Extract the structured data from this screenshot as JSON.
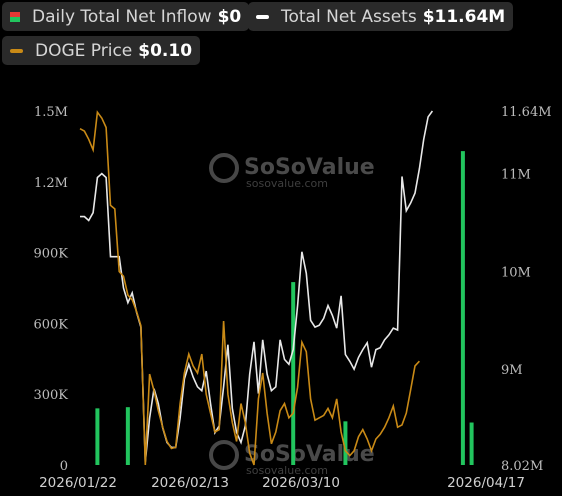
{
  "legend": {
    "inflow": {
      "label": "Daily Total Net Inflow",
      "value": "$0"
    },
    "assets": {
      "label": "Total Net Assets",
      "value": "$11.64M"
    },
    "price": {
      "label": "DOGE Price",
      "value": "$0.10"
    }
  },
  "watermark": {
    "brand": "SoSoValue",
    "site": "sosovalue.com"
  },
  "colors": {
    "inflow_pos": "#22c55e",
    "inflow_neg": "#e53935",
    "assets": "#e8e8e8",
    "price": "#c98a16"
  },
  "chart_data": {
    "type": "bar+line",
    "x_start": "2026-01-16",
    "x_end": "2026-04-20",
    "xticks": [
      "2026/01/22",
      "2026/02/13",
      "2026/03/10",
      "2026/04/17"
    ],
    "left_ticks": [
      "1.5M",
      "1.2M",
      "900K",
      "600K",
      "300K",
      "0"
    ],
    "left_ylim": [
      0,
      1500000
    ],
    "right_ticks": [
      "11.64M",
      "11M",
      "10M",
      "9M",
      "8.02M"
    ],
    "right_tick_values": [
      11640000,
      11000000,
      10000000,
      9000000,
      8020000
    ],
    "right_ylim": [
      8020000,
      11640000
    ],
    "inflow_bars": [
      {
        "date": "2026-01-20",
        "value": 240000
      },
      {
        "date": "2026-01-27",
        "value": 245000
      },
      {
        "date": "2026-03-06",
        "value": 775000
      },
      {
        "date": "2026-03-18",
        "value": 185000
      },
      {
        "date": "2026-04-14",
        "value": 1330000
      },
      {
        "date": "2026-04-16",
        "value": 180000
      }
    ],
    "series": [
      {
        "name": "Total Net Assets",
        "axis": "right",
        "points": [
          [
            "2026-01-16",
            10560000
          ],
          [
            "2026-01-17",
            10560000
          ],
          [
            "2026-01-18",
            10520000
          ],
          [
            "2026-01-19",
            10600000
          ],
          [
            "2026-01-20",
            10960000
          ],
          [
            "2026-01-21",
            11000000
          ],
          [
            "2026-01-22",
            10960000
          ],
          [
            "2026-01-23",
            10150000
          ],
          [
            "2026-01-24",
            10150000
          ],
          [
            "2026-01-25",
            10150000
          ],
          [
            "2026-01-26",
            9830000
          ],
          [
            "2026-01-27",
            9680000
          ],
          [
            "2026-01-28",
            9780000
          ],
          [
            "2026-01-29",
            9580000
          ],
          [
            "2026-01-30",
            9430000
          ],
          [
            "2026-01-31",
            8050000
          ],
          [
            "2026-02-01",
            8500000
          ],
          [
            "2026-02-02",
            8800000
          ],
          [
            "2026-02-03",
            8650000
          ],
          [
            "2026-02-04",
            8400000
          ],
          [
            "2026-02-05",
            8250000
          ],
          [
            "2026-02-06",
            8200000
          ],
          [
            "2026-02-07",
            8200000
          ],
          [
            "2026-02-08",
            8500000
          ],
          [
            "2026-02-09",
            8900000
          ],
          [
            "2026-02-10",
            9050000
          ],
          [
            "2026-02-11",
            8920000
          ],
          [
            "2026-02-12",
            8820000
          ],
          [
            "2026-02-13",
            8780000
          ],
          [
            "2026-02-14",
            8980000
          ],
          [
            "2026-02-15",
            8650000
          ],
          [
            "2026-02-16",
            8350000
          ],
          [
            "2026-02-17",
            8420000
          ],
          [
            "2026-02-18",
            8820000
          ],
          [
            "2026-02-19",
            9250000
          ],
          [
            "2026-02-20",
            8600000
          ],
          [
            "2026-02-21",
            8350000
          ],
          [
            "2026-02-22",
            8250000
          ],
          [
            "2026-02-23",
            8420000
          ],
          [
            "2026-02-24",
            8950000
          ],
          [
            "2026-02-25",
            9280000
          ],
          [
            "2026-02-26",
            8750000
          ],
          [
            "2026-02-27",
            9300000
          ],
          [
            "2026-02-28",
            8950000
          ],
          [
            "2026-03-01",
            8780000
          ],
          [
            "2026-03-02",
            8820000
          ],
          [
            "2026-03-03",
            9300000
          ],
          [
            "2026-03-04",
            9100000
          ],
          [
            "2026-03-05",
            9050000
          ],
          [
            "2026-03-06",
            9200000
          ],
          [
            "2026-03-07",
            9650000
          ],
          [
            "2026-03-08",
            10200000
          ],
          [
            "2026-03-09",
            9980000
          ],
          [
            "2026-03-10",
            9500000
          ],
          [
            "2026-03-11",
            9430000
          ],
          [
            "2026-03-12",
            9450000
          ],
          [
            "2026-03-13",
            9520000
          ],
          [
            "2026-03-14",
            9650000
          ],
          [
            "2026-03-15",
            9550000
          ],
          [
            "2026-03-16",
            9420000
          ],
          [
            "2026-03-17",
            9750000
          ],
          [
            "2026-03-18",
            9150000
          ],
          [
            "2026-03-19",
            9080000
          ],
          [
            "2026-03-20",
            9000000
          ],
          [
            "2026-03-21",
            9120000
          ],
          [
            "2026-03-22",
            9200000
          ],
          [
            "2026-03-23",
            9270000
          ],
          [
            "2026-03-24",
            9020000
          ],
          [
            "2026-03-25",
            9200000
          ],
          [
            "2026-03-26",
            9220000
          ],
          [
            "2026-03-27",
            9300000
          ],
          [
            "2026-03-28",
            9350000
          ],
          [
            "2026-03-29",
            9420000
          ],
          [
            "2026-03-30",
            9400000
          ],
          [
            "2026-03-31",
            10970000
          ],
          [
            "2026-04-01",
            10620000
          ],
          [
            "2026-04-02",
            10700000
          ],
          [
            "2026-04-03",
            10800000
          ],
          [
            "2026-04-04",
            11050000
          ],
          [
            "2026-04-05",
            11350000
          ],
          [
            "2026-04-06",
            11580000
          ],
          [
            "2026-04-07",
            11640000
          ]
        ]
      },
      {
        "name": "DOGE Price",
        "axis": "left",
        "points": [
          [
            "2026-01-16",
            1425000
          ],
          [
            "2026-01-17",
            1415000
          ],
          [
            "2026-01-18",
            1380000
          ],
          [
            "2026-01-19",
            1335000
          ],
          [
            "2026-01-20",
            1495000
          ],
          [
            "2026-01-21",
            1470000
          ],
          [
            "2026-01-22",
            1430000
          ],
          [
            "2026-01-23",
            1100000
          ],
          [
            "2026-01-24",
            1085000
          ],
          [
            "2026-01-25",
            820000
          ],
          [
            "2026-01-26",
            800000
          ],
          [
            "2026-01-27",
            720000
          ],
          [
            "2026-01-28",
            700000
          ],
          [
            "2026-01-29",
            650000
          ],
          [
            "2026-01-30",
            590000
          ],
          [
            "2026-01-31",
            0
          ],
          [
            "2026-02-01",
            385000
          ],
          [
            "2026-02-02",
            315000
          ],
          [
            "2026-02-03",
            230000
          ],
          [
            "2026-02-04",
            160000
          ],
          [
            "2026-02-05",
            100000
          ],
          [
            "2026-02-06",
            70000
          ],
          [
            "2026-02-07",
            75000
          ],
          [
            "2026-02-08",
            260000
          ],
          [
            "2026-02-09",
            390000
          ],
          [
            "2026-02-10",
            470000
          ],
          [
            "2026-02-11",
            420000
          ],
          [
            "2026-02-12",
            390000
          ],
          [
            "2026-02-13",
            470000
          ],
          [
            "2026-02-14",
            300000
          ],
          [
            "2026-02-15",
            220000
          ],
          [
            "2026-02-16",
            140000
          ],
          [
            "2026-02-17",
            150000
          ],
          [
            "2026-02-18",
            610000
          ],
          [
            "2026-02-19",
            300000
          ],
          [
            "2026-02-20",
            180000
          ],
          [
            "2026-02-21",
            100000
          ],
          [
            "2026-02-22",
            260000
          ],
          [
            "2026-02-23",
            180000
          ],
          [
            "2026-02-24",
            50000
          ],
          [
            "2026-02-25",
            0
          ],
          [
            "2026-02-26",
            280000
          ],
          [
            "2026-02-27",
            390000
          ],
          [
            "2026-02-28",
            220000
          ],
          [
            "2026-03-01",
            90000
          ],
          [
            "2026-03-02",
            140000
          ],
          [
            "2026-03-03",
            230000
          ],
          [
            "2026-03-04",
            260000
          ],
          [
            "2026-03-05",
            200000
          ],
          [
            "2026-03-06",
            220000
          ],
          [
            "2026-03-07",
            330000
          ],
          [
            "2026-03-08",
            520000
          ],
          [
            "2026-03-09",
            480000
          ],
          [
            "2026-03-10",
            280000
          ],
          [
            "2026-03-11",
            190000
          ],
          [
            "2026-03-12",
            200000
          ],
          [
            "2026-03-13",
            210000
          ],
          [
            "2026-03-14",
            240000
          ],
          [
            "2026-03-15",
            200000
          ],
          [
            "2026-03-16",
            280000
          ],
          [
            "2026-03-17",
            140000
          ],
          [
            "2026-03-18",
            60000
          ],
          [
            "2026-03-19",
            40000
          ],
          [
            "2026-03-20",
            60000
          ],
          [
            "2026-03-21",
            120000
          ],
          [
            "2026-03-22",
            150000
          ],
          [
            "2026-03-23",
            110000
          ],
          [
            "2026-03-24",
            60000
          ],
          [
            "2026-03-25",
            110000
          ],
          [
            "2026-03-26",
            130000
          ],
          [
            "2026-03-27",
            160000
          ],
          [
            "2026-03-28",
            200000
          ],
          [
            "2026-03-29",
            250000
          ],
          [
            "2026-03-30",
            160000
          ],
          [
            "2026-03-31",
            170000
          ],
          [
            "2026-04-01",
            220000
          ],
          [
            "2026-04-02",
            320000
          ],
          [
            "2026-04-03",
            420000
          ],
          [
            "2026-04-04",
            440000
          ]
        ]
      }
    ]
  }
}
